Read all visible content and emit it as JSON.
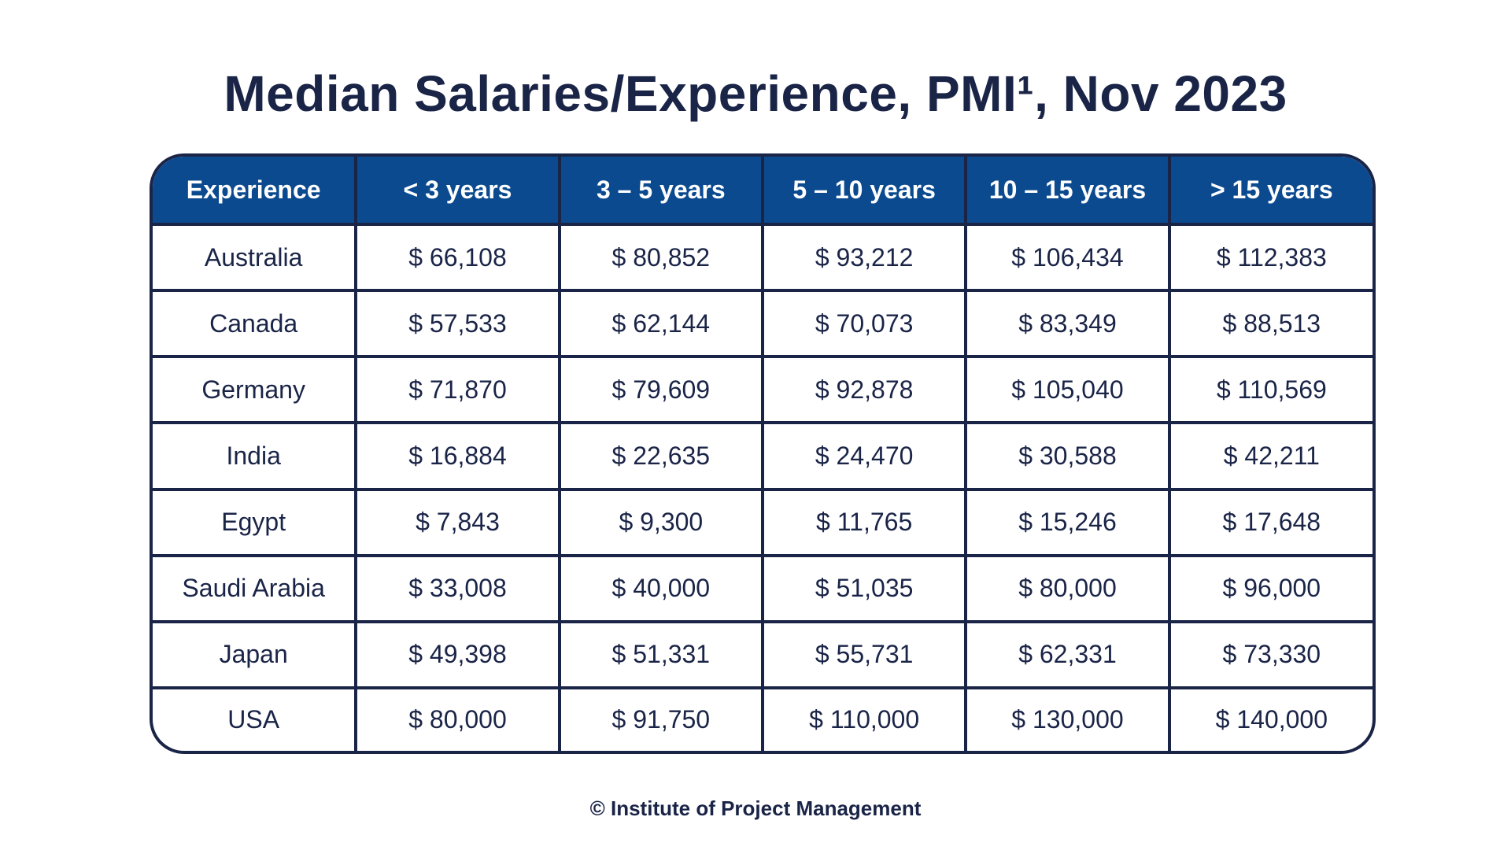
{
  "title": "Median Salaries/Experience, PMI¹, Nov 2023",
  "footer": "© Institute of Project Management",
  "colors": {
    "header_background": "#0b4a8f",
    "text_navy": "#1a2447",
    "border_navy": "#1a2447"
  },
  "chart_data": {
    "type": "table",
    "title": "Median Salaries/Experience, PMI¹, Nov 2023",
    "columns": [
      "Experience",
      "< 3 years",
      "3 – 5 years",
      "5 – 10 years",
      "10 – 15 years",
      "> 15 years"
    ],
    "rows": [
      {
        "country": "Australia",
        "values": [
          "$ 66,108",
          "$ 80,852",
          "$ 93,212",
          "$ 106,434",
          "$ 112,383"
        ]
      },
      {
        "country": "Canada",
        "values": [
          "$ 57,533",
          "$ 62,144",
          "$ 70,073",
          "$ 83,349",
          "$ 88,513"
        ]
      },
      {
        "country": "Germany",
        "values": [
          "$ 71,870",
          "$ 79,609",
          "$ 92,878",
          "$ 105,040",
          "$ 110,569"
        ]
      },
      {
        "country": "India",
        "values": [
          "$ 16,884",
          "$ 22,635",
          "$ 24,470",
          "$ 30,588",
          "$ 42,211"
        ]
      },
      {
        "country": "Egypt",
        "values": [
          "$ 7,843",
          "$ 9,300",
          "$ 11,765",
          "$ 15,246",
          "$ 17,648"
        ]
      },
      {
        "country": "Saudi Arabia",
        "values": [
          "$ 33,008",
          "$ 40,000",
          "$ 51,035",
          "$ 80,000",
          "$ 96,000"
        ]
      },
      {
        "country": "Japan",
        "values": [
          "$ 49,398",
          "$ 51,331",
          "$ 55,731",
          "$ 62,331",
          "$ 73,330"
        ]
      },
      {
        "country": "USA",
        "values": [
          "$ 80,000",
          "$ 91,750",
          "$ 110,000",
          "$ 130,000",
          "$ 140,000"
        ]
      }
    ]
  }
}
